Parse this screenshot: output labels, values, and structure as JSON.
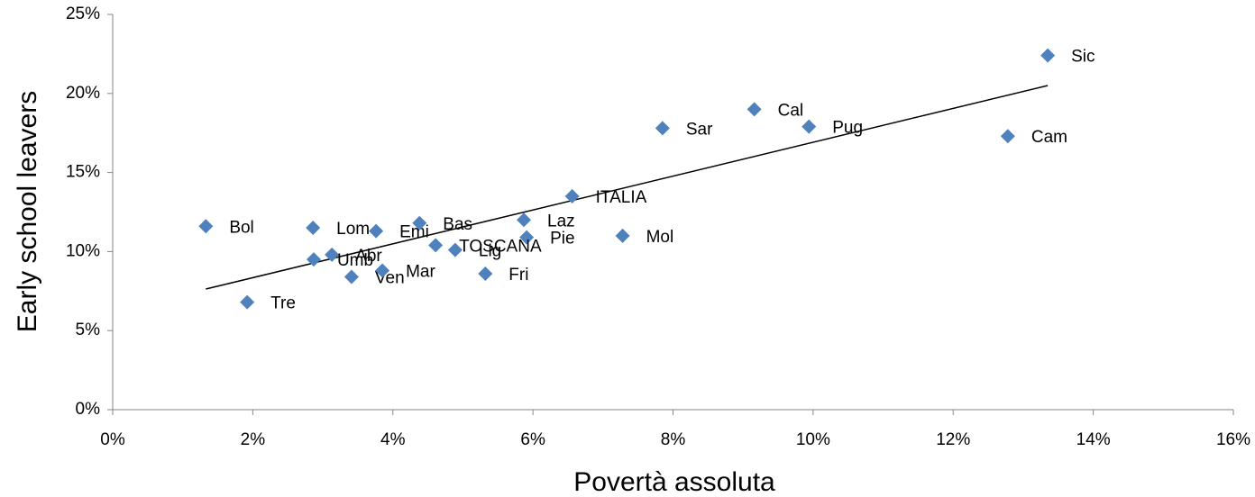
{
  "chart_data": {
    "type": "scatter",
    "x_label": "Povertà assoluta",
    "y_label": "Early school leavers",
    "labels": [
      "Sic",
      "Cal",
      "Pug",
      "Sar",
      "Cam",
      "ITALIA",
      "Laz",
      "Mol",
      "Pie",
      "Bol",
      "Lom",
      "Emi",
      "Bas",
      "TOSCANA",
      "Lig",
      "Abr",
      "Umb",
      "Ven",
      "Mar",
      "Fri",
      "Tre"
    ],
    "x": [
      13.35,
      9.16,
      9.94,
      7.85,
      12.78,
      6.56,
      5.87,
      7.28,
      5.91,
      1.33,
      2.86,
      3.76,
      4.38,
      4.61,
      4.89,
      3.13,
      2.87,
      3.41,
      3.85,
      5.32,
      1.92
    ],
    "values": [
      22.4,
      19.0,
      17.9,
      17.8,
      17.3,
      13.5,
      12.0,
      11.0,
      10.9,
      11.6,
      11.5,
      11.3,
      11.8,
      10.4,
      10.1,
      9.8,
      9.5,
      8.4,
      8.8,
      8.6,
      6.8
    ],
    "color": "#4f81bd",
    "trendline": {
      "x": [
        1.33,
        13.35
      ],
      "values": [
        7.63,
        20.5
      ],
      "color": "#000000"
    },
    "xlim": [
      0,
      16
    ],
    "xticks": [
      {
        "value": 0,
        "label": "0%"
      },
      {
        "value": 2,
        "label": "2%"
      },
      {
        "value": 4,
        "label": "4%"
      },
      {
        "value": 6,
        "label": "6%"
      },
      {
        "value": 8,
        "label": "8%"
      },
      {
        "value": 10,
        "label": "10%"
      },
      {
        "value": 12,
        "label": "12%"
      },
      {
        "value": 14,
        "label": "14%"
      },
      {
        "value": 16,
        "label": "16%"
      }
    ],
    "ylim": [
      0,
      25
    ],
    "yticks": [
      {
        "value": 0,
        "label": "0%"
      },
      {
        "value": 5,
        "label": "5%"
      },
      {
        "value": 10,
        "label": "10%"
      },
      {
        "value": 15,
        "label": "15%"
      },
      {
        "value": 20,
        "label": "20%"
      },
      {
        "value": 25,
        "label": "25%"
      }
    ],
    "grid": false
  }
}
